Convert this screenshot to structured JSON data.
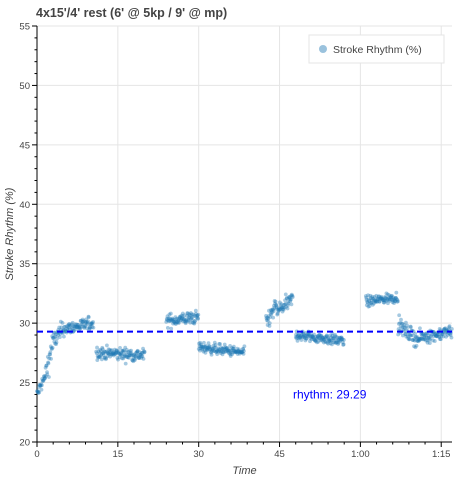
{
  "chart_data": {
    "type": "scatter",
    "title": "4x15'/4' rest (6' @ 5kp / 9' @ mp)",
    "xlabel": "Time",
    "ylabel": "Stroke Rhythm (%)",
    "xlim": [
      0,
      77
    ],
    "ylim": [
      20,
      55
    ],
    "xticks": [
      {
        "value": 0,
        "label": "0"
      },
      {
        "value": 15,
        "label": "15"
      },
      {
        "value": 30,
        "label": "30"
      },
      {
        "value": 45,
        "label": "45"
      },
      {
        "value": 60,
        "label": "1:00"
      },
      {
        "value": 75,
        "label": "1:15"
      }
    ],
    "yticks": [
      20,
      25,
      30,
      35,
      40,
      45,
      50,
      55
    ],
    "grid": true,
    "legend": {
      "position": "top-right",
      "entries": [
        "Stroke Rhythm (%)"
      ]
    },
    "series": [
      {
        "name": "Stroke Rhythm (%)",
        "color": "#1f77b4",
        "segments": [
          {
            "x_start": 0.0,
            "x_end": 1.5,
            "y_start": 24.0,
            "y_end": 25.5,
            "spread": 0.6
          },
          {
            "x_start": 1.5,
            "x_end": 3.0,
            "y_start": 25.5,
            "y_end": 28.5,
            "spread": 1.2
          },
          {
            "x_start": 3.0,
            "x_end": 5.0,
            "y_start": 28.5,
            "y_end": 29.5,
            "spread": 0.9
          },
          {
            "x_start": 5.0,
            "x_end": 10.5,
            "y_start": 29.5,
            "y_end": 30.0,
            "spread": 0.6
          },
          {
            "x_start": 11.0,
            "x_end": 20.0,
            "y_start": 27.5,
            "y_end": 27.3,
            "spread": 0.6
          },
          {
            "x_start": 24.0,
            "x_end": 30.0,
            "y_start": 30.2,
            "y_end": 30.5,
            "spread": 0.6
          },
          {
            "x_start": 30.0,
            "x_end": 38.5,
            "y_start": 28.0,
            "y_end": 27.5,
            "spread": 0.5
          },
          {
            "x_start": 42.5,
            "x_end": 44.5,
            "y_start": 30.0,
            "y_end": 31.5,
            "spread": 0.8
          },
          {
            "x_start": 44.5,
            "x_end": 47.5,
            "y_start": 31.0,
            "y_end": 32.0,
            "spread": 0.7
          },
          {
            "x_start": 48.0,
            "x_end": 57.0,
            "y_start": 29.0,
            "y_end": 28.5,
            "spread": 0.5
          },
          {
            "x_start": 61.0,
            "x_end": 67.0,
            "y_start": 31.8,
            "y_end": 32.2,
            "spread": 0.5
          },
          {
            "x_start": 67.0,
            "x_end": 71.0,
            "y_start": 29.8,
            "y_end": 28.5,
            "spread": 0.7
          },
          {
            "x_start": 71.0,
            "x_end": 77.0,
            "y_start": 28.8,
            "y_end": 29.3,
            "spread": 0.6
          }
        ]
      }
    ],
    "reference_line": {
      "y": 29.29,
      "color": "#0000ff",
      "style": "dashed"
    },
    "annotation": {
      "text": "rhythm:  29.29",
      "x": 47.5,
      "y": 24.0,
      "color": "#0000ff"
    }
  }
}
